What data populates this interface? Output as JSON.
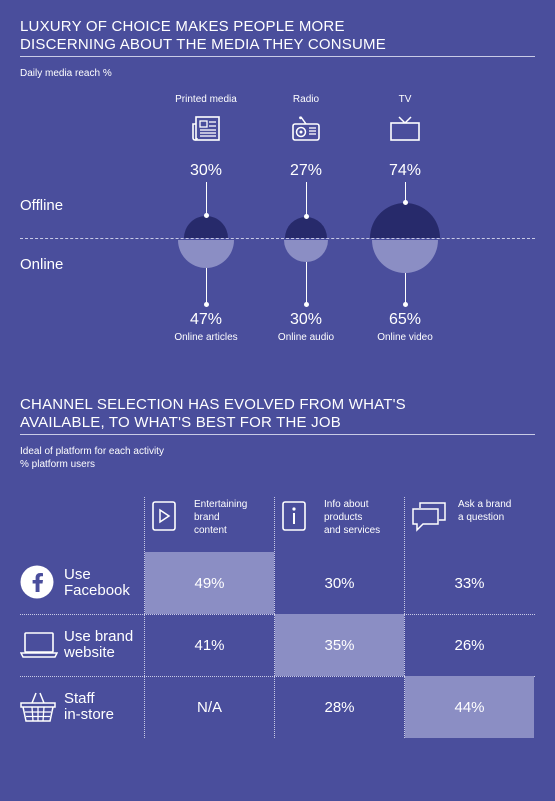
{
  "section1": {
    "title_line1": "LUXURY OF CHOICE MAKES PEOPLE MORE",
    "title_line2": "DISCERNING ABOUT THE MEDIA THEY CONSUME",
    "subtitle": "Daily media reach %",
    "offline_label": "Offline",
    "online_label": "Online"
  },
  "section2": {
    "title_line1": "CHANNEL SELECTION HAS EVOLVED FROM WHAT'S",
    "title_line2": "AVAILABLE, TO WHAT'S BEST FOR THE JOB",
    "subtitle_line1": "Ideal of platform for each activity",
    "subtitle_line2": "% platform users"
  },
  "colors": {
    "background": "#4a4e9c",
    "offline": "#272a6b",
    "online": "#8b8ec4",
    "highlight": "#8b8ec4"
  },
  "chart_data": [
    {
      "type": "semicircle-comparison",
      "title": "LUXURY OF CHOICE MAKES PEOPLE MORE DISCERNING ABOUT THE MEDIA THEY CONSUME",
      "subtitle": "Daily media reach %",
      "unit": "%",
      "items": [
        {
          "offline_name": "Printed media",
          "offline_value": 30,
          "offline_text": "30%",
          "online_name": "Online articles",
          "online_value": 47,
          "online_text": "47%",
          "icon": "newspaper-icon"
        },
        {
          "offline_name": "Radio",
          "offline_value": 27,
          "offline_text": "27%",
          "online_name": "Online audio",
          "online_value": 30,
          "online_text": "30%",
          "icon": "radio-icon"
        },
        {
          "offline_name": "TV",
          "offline_value": 74,
          "offline_text": "74%",
          "online_name": "Online video",
          "online_value": 65,
          "online_text": "65%",
          "icon": "tv-icon"
        }
      ]
    },
    {
      "type": "table",
      "title": "CHANNEL SELECTION HAS EVOLVED FROM WHAT'S AVAILABLE, TO WHAT'S BEST FOR THE JOB",
      "subtitle": "Ideal of platform for each activity % platform users",
      "columns": [
        {
          "line1": "Entertaining",
          "line2": "brand",
          "line3": "content",
          "icon": "play-icon"
        },
        {
          "line1": "Info about",
          "line2": "products",
          "line3": "and services",
          "icon": "info-icon"
        },
        {
          "line1": "Ask a brand",
          "line2": "a question",
          "line3": "",
          "icon": "chat-icon"
        }
      ],
      "rows": [
        {
          "line1": "Use",
          "line2": "Facebook",
          "icon": "facebook-icon",
          "values": [
            "49%",
            "30%",
            "33%"
          ],
          "highlight": 0
        },
        {
          "line1": "Use brand",
          "line2": "website",
          "icon": "laptop-icon",
          "values": [
            "41%",
            "35%",
            "26%"
          ],
          "highlight": 1
        },
        {
          "line1": "Staff",
          "line2": "in-store",
          "icon": "basket-icon",
          "values": [
            "N/A",
            "28%",
            "44%"
          ],
          "highlight": 2
        }
      ]
    }
  ]
}
